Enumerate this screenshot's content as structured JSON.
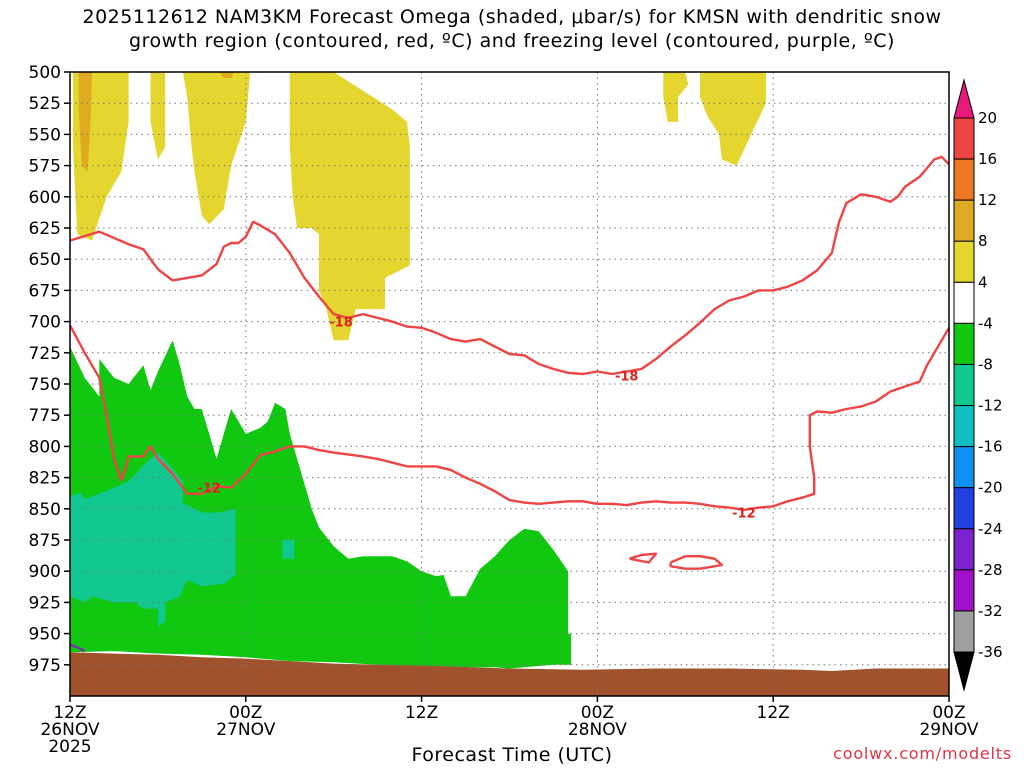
{
  "chart_data": {
    "type": "heatmap",
    "title_line1": "2025112612 NAM3KM Forecast Omega (shaded, μbar/s) for KMSN with dendritic snow",
    "title_line2": "growth region (contoured, red, ºC) and freezing level (contoured, purple, ºC)",
    "xlabel": "Forecast Time (UTC)",
    "credit": "coolwx.com/modelts",
    "y_axis": {
      "ticks": [
        500,
        525,
        550,
        575,
        600,
        625,
        650,
        675,
        700,
        725,
        750,
        775,
        800,
        825,
        850,
        875,
        900,
        925,
        950,
        975
      ],
      "range": [
        1000,
        500
      ],
      "unit": "hPa"
    },
    "x_axis": {
      "range_hours": [
        0,
        60
      ],
      "ticks": [
        {
          "hour": 0,
          "lines": [
            "12Z",
            "26NOV",
            "2025"
          ]
        },
        {
          "hour": 12,
          "lines": [
            "00Z",
            "27NOV"
          ]
        },
        {
          "hour": 24,
          "lines": [
            "12Z"
          ]
        },
        {
          "hour": 36,
          "lines": [
            "00Z",
            "28NOV"
          ]
        },
        {
          "hour": 48,
          "lines": [
            "12Z"
          ]
        },
        {
          "hour": 60,
          "lines": [
            "00Z",
            "29NOV"
          ]
        }
      ]
    },
    "colorbar": {
      "labels": [
        "20",
        "16",
        "12",
        "8",
        "4",
        "-4",
        "-8",
        "-12",
        "-16",
        "-20",
        "-24",
        "-28",
        "-32",
        "-36"
      ],
      "colors": [
        "#e8187c",
        "#ee4444",
        "#ee7722",
        "#ddaa22",
        "#e4d62e",
        "#ffffff",
        "#10c810",
        "#10c890",
        "#10c0c0",
        "#1090ee",
        "#2040e0",
        "#7a22cc",
        "#a010c8",
        "#a0a0a0",
        "#000000"
      ]
    },
    "omega_colors": {
      "pos4": "#e4d62e",
      "pos8": "#ddaa22",
      "neg4": "#10c810",
      "neg8": "#10c890",
      "ground": "#a0522d",
      "contour": "#ee4444",
      "freezing": "#7733aa"
    },
    "contour_labels": [
      {
        "text": "-18",
        "hour": 18.5,
        "p": 700
      },
      {
        "text": "-18",
        "hour": 38.0,
        "p": 743
      },
      {
        "text": "-12",
        "hour": 9.5,
        "p": 833
      },
      {
        "text": "-12",
        "hour": 46.0,
        "p": 853
      }
    ],
    "contours": [
      {
        "name": "-18",
        "points": [
          [
            0,
            635
          ],
          [
            2,
            628
          ],
          [
            4,
            638
          ],
          [
            5,
            642
          ],
          [
            6,
            658
          ],
          [
            7,
            667
          ],
          [
            8,
            665
          ],
          [
            9,
            663
          ],
          [
            10,
            654
          ],
          [
            10.5,
            640
          ],
          [
            11,
            637
          ],
          [
            11.5,
            637
          ],
          [
            12,
            632
          ],
          [
            12.5,
            620
          ],
          [
            13,
            623
          ],
          [
            14,
            630
          ],
          [
            15,
            645
          ],
          [
            16,
            665
          ],
          [
            17,
            680
          ],
          [
            18,
            694
          ],
          [
            19,
            697
          ],
          [
            20,
            694
          ],
          [
            21,
            697
          ],
          [
            22,
            700
          ],
          [
            23,
            704
          ],
          [
            24,
            705
          ],
          [
            25,
            709
          ],
          [
            26,
            714
          ],
          [
            27,
            716
          ],
          [
            28,
            714
          ],
          [
            29,
            720
          ],
          [
            30,
            726
          ],
          [
            31,
            727
          ],
          [
            32,
            734
          ],
          [
            33,
            738
          ],
          [
            34,
            741
          ],
          [
            35,
            742
          ],
          [
            36,
            740
          ],
          [
            37,
            742
          ],
          [
            38,
            740
          ],
          [
            39,
            738
          ],
          [
            40,
            730
          ],
          [
            41,
            720
          ],
          [
            42,
            711
          ],
          [
            43,
            701
          ],
          [
            44,
            690
          ],
          [
            45,
            683
          ],
          [
            46,
            680
          ],
          [
            47,
            675
          ],
          [
            48,
            675
          ],
          [
            49,
            672
          ],
          [
            50,
            667
          ],
          [
            51,
            659
          ],
          [
            52,
            645
          ],
          [
            52.5,
            620
          ],
          [
            53,
            605
          ],
          [
            54,
            598
          ],
          [
            55,
            600
          ],
          [
            56,
            604
          ],
          [
            56.5,
            600
          ],
          [
            57,
            592
          ],
          [
            58,
            584
          ],
          [
            59,
            570
          ],
          [
            59.5,
            568
          ],
          [
            60,
            574
          ]
        ]
      },
      {
        "name": "-12",
        "points": [
          [
            0,
            703
          ],
          [
            1,
            725
          ],
          [
            2,
            745
          ],
          [
            2.5,
            775
          ],
          [
            3,
            810
          ],
          [
            3.5,
            827
          ],
          [
            3.8,
            817
          ],
          [
            4,
            808
          ],
          [
            5,
            808
          ],
          [
            5.5,
            800
          ],
          [
            6,
            810
          ],
          [
            7,
            822
          ],
          [
            8,
            838
          ],
          [
            9,
            838
          ],
          [
            10,
            832
          ],
          [
            11,
            833
          ],
          [
            12,
            822
          ],
          [
            13,
            807
          ],
          [
            14,
            804
          ],
          [
            15,
            800
          ],
          [
            16,
            800
          ],
          [
            17,
            803
          ],
          [
            18,
            805
          ],
          [
            20,
            808
          ],
          [
            21,
            810
          ],
          [
            22,
            813
          ],
          [
            23,
            816
          ],
          [
            24,
            816
          ],
          [
            25,
            816
          ],
          [
            26,
            819
          ],
          [
            27,
            825
          ],
          [
            28,
            830
          ],
          [
            29,
            836
          ],
          [
            30,
            843
          ],
          [
            31,
            845
          ],
          [
            32,
            846
          ],
          [
            33,
            845
          ],
          [
            34,
            844
          ],
          [
            35,
            844
          ],
          [
            36,
            846
          ],
          [
            37,
            846
          ],
          [
            38,
            847
          ],
          [
            39,
            845
          ],
          [
            40,
            844
          ],
          [
            41,
            845
          ],
          [
            42,
            845
          ],
          [
            43,
            846
          ],
          [
            44,
            848
          ],
          [
            45,
            849
          ],
          [
            46,
            851
          ],
          [
            47,
            849
          ],
          [
            48,
            848
          ],
          [
            49,
            844
          ],
          [
            50,
            841
          ],
          [
            50.8,
            838
          ],
          [
            50.8,
            825
          ],
          [
            50.5,
            800
          ],
          [
            50.5,
            790
          ],
          [
            50.5,
            775
          ],
          [
            51,
            772
          ],
          [
            52,
            773
          ],
          [
            53,
            770
          ],
          [
            54,
            768
          ],
          [
            55,
            764
          ],
          [
            56,
            756
          ],
          [
            57,
            752
          ],
          [
            58,
            748
          ],
          [
            58.5,
            735
          ],
          [
            59,
            725
          ],
          [
            60,
            705
          ]
        ]
      },
      {
        "name": "-12-closed1",
        "points": [
          [
            38.2,
            890
          ],
          [
            39,
            887
          ],
          [
            40,
            886
          ],
          [
            39.5,
            893
          ],
          [
            38.2,
            890
          ]
        ]
      },
      {
        "name": "-12-closed2",
        "points": [
          [
            41,
            893
          ],
          [
            42,
            888
          ],
          [
            43,
            888
          ],
          [
            44,
            890
          ],
          [
            44.5,
            895
          ],
          [
            43,
            898
          ],
          [
            42,
            898
          ],
          [
            41,
            896
          ],
          [
            41,
            893
          ]
        ]
      }
    ]
  }
}
